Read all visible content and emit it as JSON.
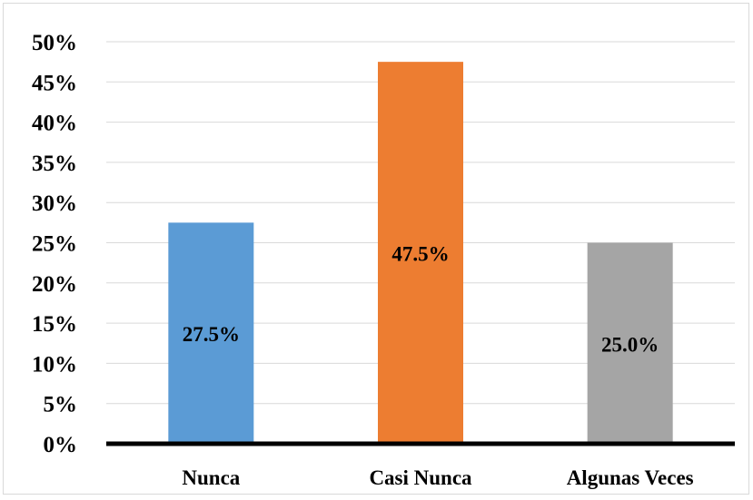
{
  "chart_data": {
    "type": "bar",
    "categories": [
      "Nunca",
      "Casi Nunca",
      "Algunas Veces"
    ],
    "values": [
      27.5,
      47.5,
      25.0
    ],
    "data_labels": [
      "27.5%",
      "47.5%",
      "25.0%"
    ],
    "colors": [
      "#5b9bd5",
      "#ed7d31",
      "#a5a5a5"
    ],
    "title": "",
    "xlabel": "",
    "ylabel": "",
    "ylim": [
      0,
      50
    ],
    "yticks": [
      0,
      5,
      10,
      15,
      20,
      25,
      30,
      35,
      40,
      45,
      50
    ],
    "ytick_labels": [
      "0%",
      "5%",
      "10%",
      "15%",
      "20%",
      "25%",
      "30%",
      "35%",
      "40%",
      "45%",
      "50%"
    ],
    "grid": true,
    "legend": "none"
  }
}
